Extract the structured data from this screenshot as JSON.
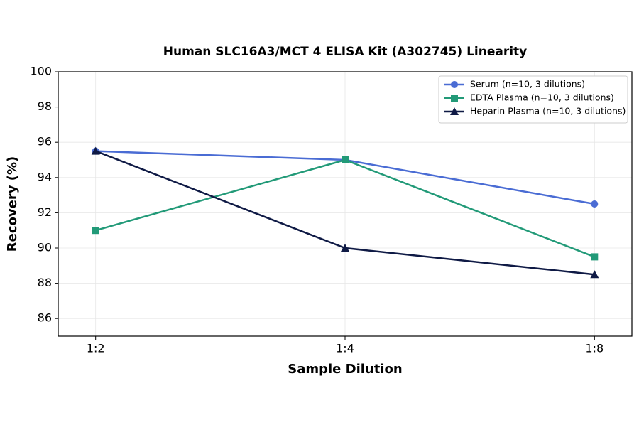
{
  "chart_data": {
    "type": "line",
    "title": "Human SLC16A3/MCT 4 ELISA Kit (A302745) Linearity",
    "x_label": "Sample Dilution",
    "y_label": "Recovery (%)",
    "categories": [
      "1:2",
      "1:4",
      "1:8"
    ],
    "series": [
      {
        "name": "Serum (n=10, 3 dilutions)",
        "color": "#4a6cd4",
        "marker": "circle",
        "values": [
          95.5,
          95,
          92.5
        ]
      },
      {
        "name": "EDTA Plasma (n=10, 3 dilutions)",
        "color": "#229a78",
        "marker": "square",
        "values": [
          91,
          95,
          89.5
        ]
      },
      {
        "name": "Heparin Plasma (n=10, 3 dilutions)",
        "color": "#0f1a45",
        "marker": "triangle",
        "values": [
          95.5,
          90,
          88.5
        ]
      }
    ],
    "ylim": [
      85,
      100
    ],
    "yticks": [
      86,
      88,
      90,
      92,
      94,
      96,
      98,
      100
    ],
    "grid": true,
    "legend": "upper-right"
  }
}
